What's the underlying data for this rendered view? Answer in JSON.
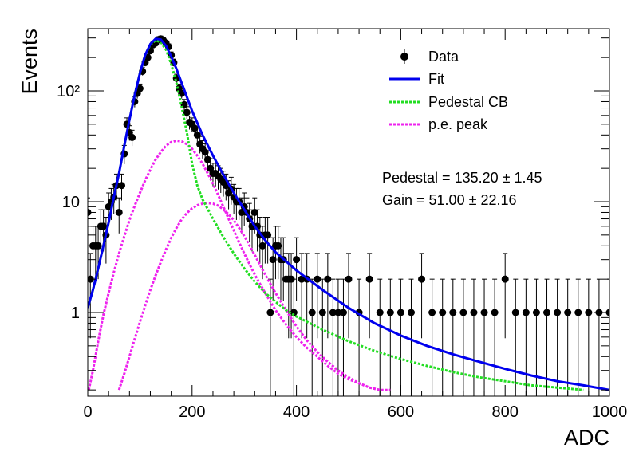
{
  "chart_data": {
    "type": "scatter",
    "xlabel": "ADC",
    "ylabel": "Events",
    "xlim": [
      0,
      1000
    ],
    "ylim": [
      0.2,
      340
    ],
    "yscale": "log",
    "grid": false,
    "legend_position": "top-right",
    "x_ticks": [
      "0",
      "200",
      "400",
      "600",
      "800",
      "1000"
    ],
    "y_ticks": [
      "1",
      "10",
      "10²"
    ],
    "series_colors": {
      "data": "#000000",
      "fit": "#0000ee",
      "pedestal": "#22dd22",
      "pe": "#ee22ee"
    },
    "legend": [
      {
        "label": "Data",
        "style": "marker"
      },
      {
        "label": "Fit",
        "style": "solid",
        "color": "#0000ee"
      },
      {
        "label": "Pedestal CB",
        "style": "dotted",
        "color": "#22dd22"
      },
      {
        "label": "p.e. peak",
        "style": "dotted",
        "color": "#ee22ee"
      }
    ],
    "annotations": [
      "Pedestal = 135.20 ± 1.45",
      "Gain = 51.00 ± 22.16"
    ],
    "model": {
      "fit": {
        "x": [
          0,
          10,
          20,
          30,
          40,
          50,
          60,
          70,
          80,
          90,
          100,
          110,
          120,
          130,
          140,
          150,
          160,
          170,
          180,
          190,
          200,
          220,
          240,
          260,
          280,
          300,
          320,
          340,
          360,
          380,
          400,
          450,
          500,
          550,
          600,
          650,
          700,
          750,
          800,
          850,
          900,
          950,
          1000
        ],
        "y": [
          1.1,
          1.6,
          2.5,
          4,
          6.5,
          11,
          18,
          32,
          55,
          92,
          145,
          210,
          265,
          295,
          290,
          255,
          205,
          158,
          118,
          88,
          66,
          40,
          26,
          17.5,
          12,
          8.5,
          6,
          4.5,
          3.5,
          2.9,
          2.4,
          1.6,
          1.1,
          0.8,
          0.62,
          0.5,
          0.42,
          0.36,
          0.31,
          0.27,
          0.24,
          0.22,
          0.2
        ]
      },
      "pedestal_cb": {
        "x": [
          0,
          10,
          20,
          30,
          40,
          50,
          60,
          70,
          80,
          90,
          100,
          110,
          120,
          130,
          140,
          150,
          160,
          170,
          180,
          190,
          200,
          210,
          220,
          240,
          260,
          280,
          300,
          320,
          340,
          360,
          380,
          400,
          450,
          500,
          550,
          600,
          650,
          700,
          750,
          800,
          850,
          900,
          950
        ],
        "y": [
          1.1,
          1.6,
          2.5,
          4,
          6.5,
          11,
          18,
          32,
          55,
          92,
          145,
          210,
          262,
          285,
          275,
          235,
          175,
          118,
          72,
          42,
          22,
          14,
          10.5,
          7,
          4.8,
          3.4,
          2.5,
          1.9,
          1.5,
          1.25,
          1.05,
          0.92,
          0.7,
          0.55,
          0.45,
          0.38,
          0.33,
          0.29,
          0.26,
          0.24,
          0.22,
          0.21,
          0.2
        ]
      },
      "pe_peak_1": {
        "x": [
          2,
          10,
          20,
          30,
          40,
          50,
          60,
          70,
          80,
          90,
          100,
          110,
          120,
          130,
          140,
          150,
          160,
          170,
          180,
          190,
          200,
          210,
          220,
          230,
          240,
          250,
          260,
          270,
          280,
          290,
          300,
          320,
          340,
          360,
          380,
          400,
          420,
          440,
          460,
          480,
          500,
          520,
          540,
          560
        ],
        "y": [
          0.2,
          0.3,
          0.55,
          0.95,
          1.5,
          2.3,
          3.4,
          4.9,
          6.8,
          9.2,
          12,
          15.5,
          19.5,
          24,
          28,
          32,
          34.5,
          35.5,
          35,
          33,
          30,
          26,
          22,
          18,
          14.5,
          11.5,
          9,
          7,
          5.5,
          4.3,
          3.4,
          2.2,
          1.5,
          1.05,
          0.78,
          0.6,
          0.48,
          0.4,
          0.33,
          0.28,
          0.25,
          0.23,
          0.21,
          0.2
        ]
      },
      "pe_peak_2": {
        "x": [
          60,
          70,
          80,
          90,
          100,
          110,
          120,
          130,
          140,
          150,
          160,
          170,
          180,
          190,
          200,
          210,
          220,
          230,
          240,
          250,
          260,
          270,
          280,
          290,
          300,
          320,
          340,
          360,
          380,
          400,
          420,
          440,
          460,
          480,
          500,
          520,
          540,
          560,
          580
        ],
        "y": [
          0.2,
          0.28,
          0.4,
          0.58,
          0.82,
          1.15,
          1.6,
          2.15,
          2.85,
          3.7,
          4.7,
          5.8,
          6.9,
          7.9,
          8.7,
          9.3,
          9.6,
          9.7,
          9.6,
          9.2,
          8.5,
          7.7,
          6.8,
          5.8,
          4.9,
          3.3,
          2.2,
          1.5,
          1.05,
          0.75,
          0.56,
          0.44,
          0.36,
          0.3,
          0.26,
          0.23,
          0.21,
          0.2,
          0.2
        ]
      }
    },
    "data_points": {
      "bin_width": 5,
      "x": [
        0,
        5,
        10,
        15,
        20,
        25,
        30,
        35,
        40,
        45,
        50,
        55,
        60,
        65,
        70,
        75,
        80,
        85,
        90,
        95,
        100,
        105,
        110,
        115,
        120,
        125,
        130,
        135,
        140,
        145,
        150,
        155,
        160,
        165,
        170,
        175,
        180,
        185,
        190,
        195,
        200,
        205,
        210,
        215,
        220,
        225,
        230,
        235,
        240,
        245,
        250,
        255,
        260,
        265,
        270,
        275,
        280,
        285,
        290,
        295,
        300,
        305,
        310,
        315,
        320,
        325,
        330,
        335,
        340,
        345,
        350,
        355,
        360,
        365,
        370,
        375,
        380,
        385,
        390,
        395,
        400,
        410,
        420,
        430,
        440,
        450,
        460,
        470,
        480,
        490,
        500,
        520,
        540,
        560,
        580,
        600,
        620,
        640,
        660,
        680,
        700,
        720,
        740,
        760,
        780,
        800,
        820,
        840,
        860,
        880,
        900,
        920,
        940,
        960,
        980,
        1000
      ],
      "y": [
        8,
        2,
        4,
        4,
        4,
        6,
        6,
        5,
        9,
        10,
        11,
        14,
        8,
        14,
        27,
        50,
        42,
        38,
        80,
        95,
        105,
        150,
        180,
        200,
        230,
        260,
        270,
        290,
        295,
        285,
        270,
        250,
        210,
        180,
        130,
        105,
        95,
        75,
        64,
        52,
        50,
        46,
        40,
        33,
        30,
        28,
        24,
        20,
        18,
        18,
        17,
        16,
        15,
        14,
        12,
        13,
        11,
        10,
        10,
        8,
        9,
        8,
        7,
        6,
        8,
        6,
        5,
        4,
        5,
        5,
        1,
        3,
        4,
        4,
        3,
        3,
        2,
        2,
        2,
        1,
        3,
        2,
        2,
        1,
        2,
        1,
        2,
        1,
        1,
        1,
        2,
        1,
        2,
        1,
        1,
        1,
        1,
        2,
        1,
        1,
        1,
        1,
        1,
        1,
        1,
        2,
        1,
        1,
        1,
        1,
        1,
        1,
        1,
        1,
        1,
        1
      ]
    }
  }
}
